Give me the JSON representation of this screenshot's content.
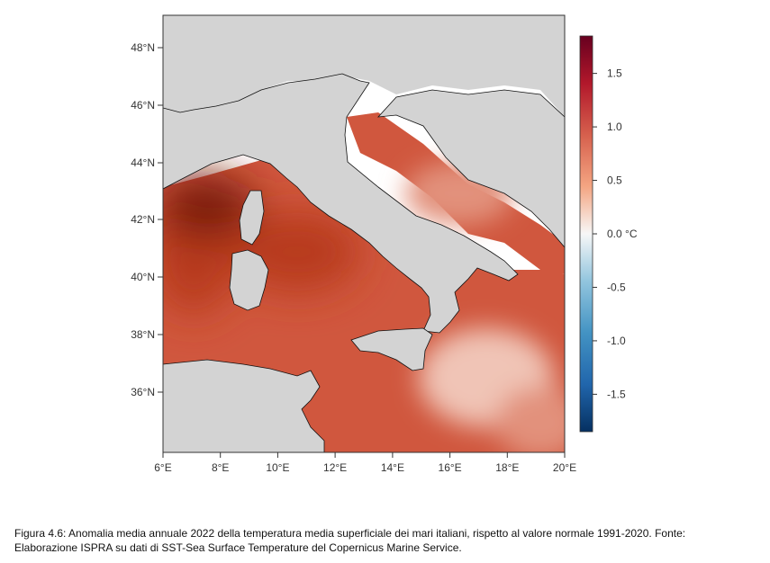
{
  "map": {
    "lat_ticks": [
      "48°N",
      "46°N",
      "44°N",
      "42°N",
      "40°N",
      "38°N",
      "36°N"
    ],
    "lon_ticks": [
      "6°E",
      "8°E",
      "10°E",
      "12°E",
      "14°E",
      "16°E",
      "18°E",
      "20°E"
    ],
    "colors": {
      "land": "#d3d3d3",
      "coast": "#111111",
      "sea_deep": "#7a1f08",
      "sea_high": "#b83a1c",
      "sea_mid": "#d0573e",
      "sea_light": "#e2917c",
      "sea_pale": "#f0c4b6"
    }
  },
  "colorbar": {
    "labels": [
      "1.5",
      "1.0",
      "0.5",
      "0.0 °C",
      "-0.5",
      "-1.0",
      "-1.5"
    ],
    "range": [
      -1.85,
      1.85
    ],
    "colors": [
      "#053061",
      "#2166ac",
      "#4393c3",
      "#92c5de",
      "#f7f7f7",
      "#f4a582",
      "#d6604d",
      "#b2182b",
      "#67001f"
    ]
  },
  "caption": {
    "line1": "Figura 4.6: Anomalia media annuale 2022 della temperatura media superficiale dei mari italiani, rispetto al valore normale 1991-2020. Fonte:",
    "line2": "Elaborazione ISPRA su dati di SST-Sea Surface Temperature del Copernicus Marine Service."
  }
}
